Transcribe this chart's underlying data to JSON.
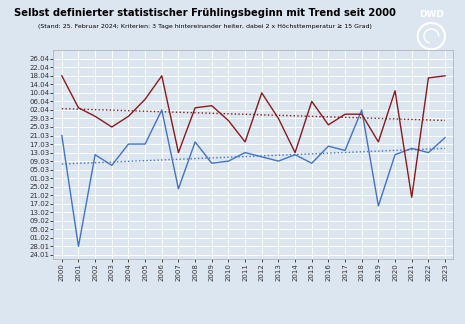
{
  "title": "Selbst definierter statistischer Frühlingsbeginn mit Trend seit 2000",
  "subtitle": "(Stand: 25. Februar 2024; Kriterien: 3 Tage hintereinander heiter, dabei 2 x Höchsttemperatur ≥ 15 Grad)",
  "years": [
    2000,
    2001,
    2002,
    2003,
    2004,
    2005,
    2006,
    2007,
    2008,
    2009,
    2010,
    2011,
    2012,
    2013,
    2014,
    2015,
    2016,
    2017,
    2018,
    2019,
    2020,
    2021,
    2022,
    2023
  ],
  "munich": [
    80,
    28,
    71,
    66,
    76,
    76,
    92,
    55,
    77,
    67,
    68,
    72,
    70,
    68,
    71,
    67,
    75,
    73,
    92,
    47,
    71,
    74,
    72,
    79
  ],
  "hamburg": [
    108,
    93,
    89,
    84,
    89,
    97,
    108,
    72,
    93,
    94,
    87,
    77,
    100,
    88,
    72,
    96,
    85,
    90,
    90,
    77,
    101,
    51,
    107,
    108
  ],
  "munich_color": "#4472c4",
  "hamburg_color": "#8b1a1a",
  "trend_munich_color": "#4472c4",
  "trend_hamburg_color": "#8b1a1a",
  "bg_color": "#dce6f1",
  "grid_color": "#ffffff",
  "ytick_labels": [
    "26.04",
    "22.04",
    "18.04",
    "14.04",
    "10.04",
    "06.04",
    "02.04",
    "29.03",
    "25.03",
    "21.03",
    "17.03",
    "13.03",
    "09.03",
    "05.03",
    "01.03",
    "25.02",
    "21.02",
    "17.02",
    "13.02",
    "09.02",
    "05.02",
    "01.02",
    "28.01",
    "24.01"
  ],
  "ytick_values": [
    116,
    112,
    108,
    104,
    100,
    96,
    92,
    88,
    84,
    80,
    76,
    72,
    68,
    64,
    60,
    56,
    52,
    48,
    44,
    40,
    36,
    32,
    28,
    24
  ]
}
